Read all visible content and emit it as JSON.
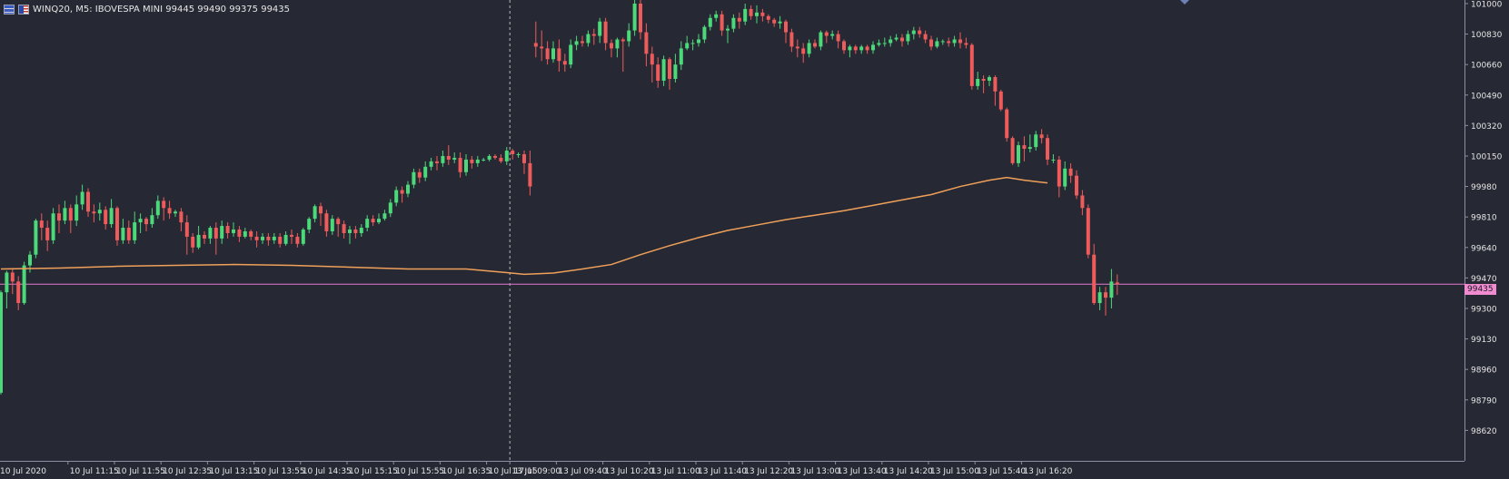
{
  "header": {
    "symbol": "WINQ20",
    "timeframe": "M5",
    "description": "IBOVESPA MINI",
    "ohlc": "99445 99490 99375 99435",
    "title_text": "WINQ20, M5:  IBOVESPA MINI  99445 99490 99375 99435"
  },
  "colors": {
    "background": "#262833",
    "axis": "#8a8fa3",
    "axis_text": "#e6e6e6",
    "bull": "#4cd97a",
    "bear": "#ee5b5b",
    "moving_average": "#f0a05a",
    "current_price_line": "#e07ad0",
    "separator": "#b8b8b8"
  },
  "icons": [
    "chart-grid-icon",
    "us-flag-icon"
  ],
  "chart_data": {
    "type": "candlestick",
    "symbol": "WINQ20",
    "timeframe": "M5",
    "current_price": 99435,
    "current_price_label": "99435",
    "ylim": [
      98450,
      101020
    ],
    "y_ticks": [
      101000,
      100830,
      100660,
      100490,
      100320,
      100150,
      99980,
      99810,
      99640,
      99470,
      99300,
      99130,
      98960,
      98790,
      98620
    ],
    "x_ticks": [
      {
        "label": "10 Jul 2020",
        "bar": 0
      },
      {
        "label": "10 Jul 11:15",
        "bar": 12
      },
      {
        "label": "10 Jul 11:55",
        "bar": 20
      },
      {
        "label": "10 Jul 12:35",
        "bar": 28
      },
      {
        "label": "10 Jul 13:15",
        "bar": 36
      },
      {
        "label": "10 Jul 13:55",
        "bar": 44
      },
      {
        "label": "10 Jul 14:35",
        "bar": 52
      },
      {
        "label": "10 Jul 15:15",
        "bar": 60
      },
      {
        "label": "10 Jul 15:55",
        "bar": 68
      },
      {
        "label": "10 Jul 16:35",
        "bar": 76
      },
      {
        "label": "10 Jul 17:15",
        "bar": 84
      },
      {
        "label": "13 Jul 09:00",
        "bar": 88
      },
      {
        "label": "13 Jul 09:40",
        "bar": 96
      },
      {
        "label": "13 Jul 10:20",
        "bar": 104
      },
      {
        "label": "13 Jul 11:00",
        "bar": 112
      },
      {
        "label": "13 Jul 11:40",
        "bar": 120
      },
      {
        "label": "13 Jul 12:20",
        "bar": 128
      },
      {
        "label": "13 Jul 13:00",
        "bar": 136
      },
      {
        "label": "13 Jul 13:40",
        "bar": 144
      },
      {
        "label": "13 Jul 14:20",
        "bar": 152
      },
      {
        "label": "13 Jul 15:00",
        "bar": 160
      },
      {
        "label": "13 Jul 15:40",
        "bar": 168
      },
      {
        "label": "13 Jul 16:20",
        "bar": 176
      }
    ],
    "session_break_bar": 88,
    "bar_count": 181,
    "candles": [
      [
        98830,
        99390,
        98820,
        99400
      ],
      [
        99390,
        99500,
        99300,
        99510
      ],
      [
        99500,
        99450,
        99380,
        99520
      ],
      [
        99450,
        99330,
        99290,
        99480
      ],
      [
        99330,
        99540,
        99320,
        99560
      ],
      [
        99540,
        99600,
        99500,
        99620
      ],
      [
        99600,
        99790,
        99580,
        99800
      ],
      [
        99790,
        99750,
        99680,
        99830
      ],
      [
        99750,
        99680,
        99620,
        99790
      ],
      [
        99680,
        99830,
        99660,
        99860
      ],
      [
        99830,
        99790,
        99720,
        99880
      ],
      [
        99790,
        99860,
        99770,
        99900
      ],
      [
        99860,
        99790,
        99720,
        99880
      ],
      [
        99790,
        99880,
        99760,
        99930
      ],
      [
        99880,
        99950,
        99850,
        99990
      ],
      [
        99950,
        99840,
        99810,
        99970
      ],
      [
        99840,
        99830,
        99780,
        99880
      ],
      [
        99830,
        99850,
        99790,
        99890
      ],
      [
        99850,
        99770,
        99740,
        99870
      ],
      [
        99770,
        99860,
        99750,
        99910
      ],
      [
        99860,
        99680,
        99650,
        99870
      ],
      [
        99680,
        99750,
        99660,
        99800
      ],
      [
        99750,
        99680,
        99660,
        99790
      ],
      [
        99680,
        99780,
        99660,
        99840
      ],
      [
        99780,
        99800,
        99720,
        99830
      ],
      [
        99800,
        99770,
        99730,
        99810
      ],
      [
        99770,
        99820,
        99750,
        99860
      ],
      [
        99820,
        99900,
        99800,
        99930
      ],
      [
        99900,
        99860,
        99790,
        99920
      ],
      [
        99860,
        99830,
        99800,
        99900
      ],
      [
        99830,
        99840,
        99810,
        99850
      ],
      [
        99840,
        99780,
        99730,
        99860
      ],
      [
        99780,
        99700,
        99600,
        99820
      ],
      [
        99700,
        99640,
        99610,
        99720
      ],
      [
        99640,
        99710,
        99630,
        99760
      ],
      [
        99710,
        99690,
        99660,
        99730
      ],
      [
        99690,
        99750,
        99660,
        99760
      ],
      [
        99750,
        99690,
        99600,
        99780
      ],
      [
        99690,
        99760,
        99660,
        99790
      ],
      [
        99760,
        99720,
        99690,
        99780
      ],
      [
        99720,
        99740,
        99700,
        99780
      ],
      [
        99740,
        99700,
        99670,
        99760
      ],
      [
        99700,
        99730,
        99690,
        99750
      ],
      [
        99730,
        99700,
        99680,
        99740
      ],
      [
        99700,
        99680,
        99640,
        99730
      ],
      [
        99680,
        99700,
        99660,
        99720
      ],
      [
        99700,
        99680,
        99650,
        99720
      ],
      [
        99680,
        99700,
        99660,
        99720
      ],
      [
        99700,
        99660,
        99640,
        99720
      ],
      [
        99660,
        99710,
        99650,
        99730
      ],
      [
        99710,
        99700,
        99660,
        99740
      ],
      [
        99700,
        99660,
        99640,
        99720
      ],
      [
        99660,
        99740,
        99650,
        99750
      ],
      [
        99740,
        99800,
        99720,
        99810
      ],
      [
        99800,
        99870,
        99780,
        99880
      ],
      [
        99870,
        99830,
        99760,
        99890
      ],
      [
        99830,
        99730,
        99700,
        99850
      ],
      [
        99730,
        99800,
        99710,
        99820
      ],
      [
        99800,
        99770,
        99700,
        99810
      ],
      [
        99770,
        99720,
        99690,
        99790
      ],
      [
        99720,
        99740,
        99660,
        99760
      ],
      [
        99740,
        99720,
        99690,
        99760
      ],
      [
        99720,
        99750,
        99700,
        99770
      ],
      [
        99750,
        99800,
        99730,
        99820
      ],
      [
        99800,
        99780,
        99760,
        99820
      ],
      [
        99780,
        99800,
        99770,
        99830
      ],
      [
        99800,
        99830,
        99790,
        99850
      ],
      [
        99830,
        99890,
        99810,
        99910
      ],
      [
        99890,
        99960,
        99870,
        99980
      ],
      [
        99960,
        99940,
        99890,
        99980
      ],
      [
        99940,
        99990,
        99920,
        100010
      ],
      [
        99990,
        100060,
        99970,
        100080
      ],
      [
        100060,
        100030,
        100000,
        100080
      ],
      [
        100030,
        100090,
        100010,
        100120
      ],
      [
        100090,
        100120,
        100070,
        100140
      ],
      [
        100120,
        100110,
        100070,
        100150
      ],
      [
        100110,
        100150,
        100090,
        100180
      ],
      [
        100150,
        100130,
        100100,
        100210
      ],
      [
        100130,
        100140,
        100110,
        100170
      ],
      [
        100140,
        100060,
        100030,
        100170
      ],
      [
        100060,
        100130,
        100040,
        100160
      ],
      [
        100130,
        100110,
        100080,
        100150
      ],
      [
        100110,
        100130,
        100090,
        100150
      ],
      [
        100130,
        100130,
        100120,
        100140
      ],
      [
        100130,
        100150,
        100120,
        100160
      ],
      [
        100150,
        100140,
        100130,
        100160
      ],
      [
        100140,
        100120,
        100110,
        100160
      ],
      [
        100120,
        100180,
        100100,
        100200
      ],
      [
        100180,
        100160,
        100130,
        100190
      ],
      [
        100160,
        100160,
        100140,
        100170
      ],
      [
        100160,
        100110,
        100050,
        100180
      ],
      [
        100110,
        99980,
        99930,
        100180
      ],
      [
        100780,
        100760,
        100700,
        100900
      ],
      [
        100760,
        100750,
        100680,
        100850
      ],
      [
        100750,
        100690,
        100660,
        100790
      ],
      [
        100690,
        100750,
        100670,
        100790
      ],
      [
        100750,
        100680,
        100620,
        100800
      ],
      [
        100680,
        100660,
        100620,
        100720
      ],
      [
        100660,
        100770,
        100640,
        100800
      ],
      [
        100770,
        100790,
        100740,
        100820
      ],
      [
        100790,
        100780,
        100760,
        100820
      ],
      [
        100780,
        100830,
        100760,
        100850
      ],
      [
        100830,
        100820,
        100770,
        100860
      ],
      [
        100820,
        100900,
        100780,
        100920
      ],
      [
        100900,
        100780,
        100740,
        100920
      ],
      [
        100780,
        100750,
        100700,
        100800
      ],
      [
        100750,
        100800,
        100700,
        100810
      ],
      [
        100800,
        100790,
        100620,
        100810
      ],
      [
        100790,
        100850,
        100760,
        100890
      ],
      [
        100850,
        101000,
        100820,
        101040
      ],
      [
        101000,
        100840,
        100800,
        101020
      ],
      [
        100840,
        100720,
        100650,
        100890
      ],
      [
        100720,
        100660,
        100560,
        100760
      ],
      [
        100660,
        100570,
        100530,
        100700
      ],
      [
        100570,
        100690,
        100540,
        100710
      ],
      [
        100690,
        100580,
        100520,
        100700
      ],
      [
        100580,
        100660,
        100560,
        100720
      ],
      [
        100660,
        100750,
        100630,
        100790
      ],
      [
        100750,
        100780,
        100740,
        100820
      ],
      [
        100780,
        100780,
        100740,
        100800
      ],
      [
        100780,
        100800,
        100760,
        100830
      ],
      [
        100800,
        100870,
        100780,
        100880
      ],
      [
        100870,
        100920,
        100850,
        100940
      ],
      [
        100920,
        100940,
        100900,
        100960
      ],
      [
        100940,
        100850,
        100820,
        100960
      ],
      [
        100850,
        100860,
        100780,
        100880
      ],
      [
        100860,
        100920,
        100840,
        100940
      ],
      [
        100920,
        100900,
        100860,
        100950
      ],
      [
        100900,
        100970,
        100880,
        101000
      ],
      [
        100970,
        100930,
        100910,
        100990
      ],
      [
        100930,
        100950,
        100890,
        100990
      ],
      [
        100950,
        100930,
        100900,
        100970
      ],
      [
        100930,
        100910,
        100890,
        100940
      ],
      [
        100910,
        100890,
        100870,
        100920
      ],
      [
        100890,
        100900,
        100860,
        100930
      ],
      [
        100900,
        100840,
        100780,
        100910
      ],
      [
        100840,
        100760,
        100730,
        100860
      ],
      [
        100760,
        100750,
        100700,
        100800
      ],
      [
        100750,
        100720,
        100670,
        100780
      ],
      [
        100720,
        100780,
        100700,
        100800
      ],
      [
        100780,
        100760,
        100750,
        100800
      ],
      [
        100760,
        100840,
        100740,
        100850
      ],
      [
        100840,
        100820,
        100780,
        100850
      ],
      [
        100820,
        100830,
        100800,
        100850
      ],
      [
        100830,
        100790,
        100750,
        100850
      ],
      [
        100790,
        100740,
        100720,
        100800
      ],
      [
        100740,
        100760,
        100700,
        100770
      ],
      [
        100760,
        100740,
        100720,
        100770
      ],
      [
        100740,
        100760,
        100720,
        100770
      ],
      [
        100760,
        100740,
        100720,
        100770
      ],
      [
        100740,
        100770,
        100720,
        100790
      ],
      [
        100770,
        100780,
        100760,
        100800
      ],
      [
        100780,
        100780,
        100760,
        100810
      ],
      [
        100780,
        100800,
        100760,
        100820
      ],
      [
        100800,
        100810,
        100790,
        100830
      ],
      [
        100810,
        100790,
        100760,
        100830
      ],
      [
        100790,
        100830,
        100770,
        100850
      ],
      [
        100830,
        100850,
        100800,
        100870
      ],
      [
        100850,
        100830,
        100810,
        100870
      ],
      [
        100830,
        100800,
        100780,
        100850
      ],
      [
        100800,
        100760,
        100740,
        100820
      ],
      [
        100760,
        100790,
        100750,
        100810
      ],
      [
        100790,
        100790,
        100770,
        100800
      ],
      [
        100790,
        100780,
        100760,
        100810
      ],
      [
        100780,
        100800,
        100760,
        100820
      ],
      [
        100800,
        100780,
        100750,
        100840
      ],
      [
        100780,
        100770,
        100750,
        100810
      ],
      [
        100770,
        100540,
        100520,
        100780
      ],
      [
        100540,
        100580,
        100520,
        100620
      ],
      [
        100580,
        100570,
        100500,
        100600
      ],
      [
        100570,
        100590,
        100540,
        100600
      ],
      [
        100590,
        100510,
        100430,
        100600
      ],
      [
        100510,
        100410,
        100400,
        100520
      ],
      [
        100410,
        100250,
        100230,
        100420
      ],
      [
        100250,
        100110,
        100100,
        100260
      ],
      [
        100110,
        100210,
        100090,
        100230
      ],
      [
        100210,
        100190,
        100120,
        100260
      ],
      [
        100190,
        100200,
        100170,
        100270
      ],
      [
        100200,
        100270,
        100180,
        100290
      ],
      [
        100270,
        100250,
        100220,
        100300
      ],
      [
        100250,
        100130,
        100100,
        100270
      ],
      [
        100130,
        100130,
        100110,
        100160
      ],
      [
        100130,
        99980,
        99920,
        100150
      ],
      [
        99980,
        100080,
        99960,
        100120
      ],
      [
        100080,
        100040,
        100000,
        100110
      ],
      [
        100040,
        99930,
        99910,
        100070
      ],
      [
        99930,
        99860,
        99820,
        99960
      ],
      [
        99860,
        99600,
        99580,
        99880
      ],
      [
        99600,
        99330,
        99320,
        99660
      ],
      [
        99330,
        99390,
        99290,
        99420
      ],
      [
        99390,
        99360,
        99260,
        99420
      ],
      [
        99360,
        99450,
        99300,
        99520
      ],
      [
        99445,
        99435,
        99375,
        99490
      ]
    ],
    "moving_average": [
      {
        "bar": 0,
        "value": 99520
      },
      {
        "bar": 10,
        "value": 99525
      },
      {
        "bar": 20,
        "value": 99535
      },
      {
        "bar": 30,
        "value": 99540
      },
      {
        "bar": 40,
        "value": 99545
      },
      {
        "bar": 50,
        "value": 99540
      },
      {
        "bar": 60,
        "value": 99530
      },
      {
        "bar": 70,
        "value": 99520
      },
      {
        "bar": 80,
        "value": 99520
      },
      {
        "bar": 87,
        "value": 99500
      },
      {
        "bar": 90,
        "value": 99490
      },
      {
        "bar": 95,
        "value": 99497
      },
      {
        "bar": 100,
        "value": 99520
      },
      {
        "bar": 105,
        "value": 99545
      },
      {
        "bar": 110,
        "value": 99600
      },
      {
        "bar": 115,
        "value": 99650
      },
      {
        "bar": 120,
        "value": 99695
      },
      {
        "bar": 125,
        "value": 99735
      },
      {
        "bar": 130,
        "value": 99765
      },
      {
        "bar": 135,
        "value": 99795
      },
      {
        "bar": 140,
        "value": 99820
      },
      {
        "bar": 145,
        "value": 99845
      },
      {
        "bar": 150,
        "value": 99875
      },
      {
        "bar": 155,
        "value": 99905
      },
      {
        "bar": 160,
        "value": 99935
      },
      {
        "bar": 165,
        "value": 99980
      },
      {
        "bar": 170,
        "value": 100015
      },
      {
        "bar": 173,
        "value": 100030
      },
      {
        "bar": 176,
        "value": 100015
      },
      {
        "bar": 180,
        "value": 100000
      }
    ]
  }
}
